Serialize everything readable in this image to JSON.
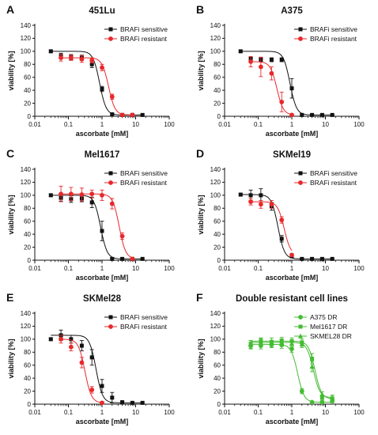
{
  "chart_data": [
    {
      "type": "scatter",
      "letter": "A",
      "title": "451Lu",
      "xlabel": "ascorbate [mM]",
      "ylabel": "viability [%]",
      "xscale": "log",
      "xlim": [
        0.01,
        100
      ],
      "ylim": [
        0,
        140
      ],
      "xticks": [
        "0.01",
        "0.1",
        "1",
        "10",
        "100"
      ],
      "yticks": [
        "0",
        "20",
        "40",
        "60",
        "80",
        "100",
        "120",
        "140"
      ],
      "grid": false,
      "legend_position": "top-right",
      "series": [
        {
          "name": "BRAFi sensitive",
          "color": "#111111",
          "marker": "square",
          "x": [
            0.03,
            0.06,
            0.12,
            0.25,
            0.5,
            1,
            2,
            4,
            8,
            16
          ],
          "y": [
            100,
            93,
            91,
            90,
            80,
            42,
            3,
            2,
            2,
            2
          ],
          "err": [
            2,
            4,
            4,
            4,
            5,
            4,
            1,
            1,
            1,
            1
          ]
        },
        {
          "name": "BRAFi resistant",
          "color": "#e8282b",
          "marker": "circle",
          "x": [
            0.06,
            0.12,
            0.25,
            0.5,
            1,
            2,
            4,
            8
          ],
          "y": [
            90,
            90,
            88,
            86,
            75,
            30,
            2,
            2
          ],
          "err": [
            5,
            4,
            5,
            4,
            5,
            4,
            1,
            1
          ]
        }
      ]
    },
    {
      "type": "scatter",
      "letter": "B",
      "title": "A375",
      "xlabel": "ascorbate [mM]",
      "ylabel": "viability [%]",
      "xscale": "log",
      "xlim": [
        0.01,
        100
      ],
      "ylim": [
        0,
        140
      ],
      "xticks": [
        "0.01",
        "0.1",
        "1",
        "10",
        "100"
      ],
      "yticks": [
        "0",
        "20",
        "40",
        "60",
        "80",
        "100",
        "120",
        "140"
      ],
      "grid": false,
      "legend_position": "top-right",
      "series": [
        {
          "name": "BRAFi sensitive",
          "color": "#111111",
          "marker": "square",
          "x": [
            0.03,
            0.06,
            0.12,
            0.25,
            0.5,
            1,
            2,
            4,
            8,
            16
          ],
          "y": [
            100,
            88,
            87,
            87,
            87,
            43,
            2,
            2,
            2,
            2
          ],
          "err": [
            2,
            3,
            3,
            3,
            3,
            15,
            1,
            1,
            1,
            1
          ]
        },
        {
          "name": "BRAFi resistant",
          "color": "#e8282b",
          "marker": "circle",
          "x": [
            0.06,
            0.12,
            0.25,
            0.5,
            1
          ],
          "y": [
            84,
            76,
            66,
            22,
            2
          ],
          "err": [
            8,
            15,
            10,
            15,
            1
          ]
        }
      ]
    },
    {
      "type": "scatter",
      "letter": "C",
      "title": "Mel1617",
      "xlabel": "ascorbate [mM]",
      "ylabel": "viability [%]",
      "xscale": "log",
      "xlim": [
        0.01,
        100
      ],
      "ylim": [
        0,
        140
      ],
      "xticks": [
        "0.01",
        "0.1",
        "1",
        "10",
        "100"
      ],
      "yticks": [
        "0",
        "20",
        "40",
        "60",
        "80",
        "100",
        "120",
        "140"
      ],
      "grid": false,
      "legend_position": "top-right",
      "series": [
        {
          "name": "BRAFi sensitive",
          "color": "#111111",
          "marker": "square",
          "x": [
            0.03,
            0.06,
            0.12,
            0.25,
            0.5,
            1,
            2,
            4,
            8,
            16
          ],
          "y": [
            100,
            96,
            94,
            95,
            89,
            45,
            2,
            2,
            2,
            2
          ],
          "err": [
            2,
            5,
            5,
            5,
            8,
            15,
            1,
            1,
            1,
            1
          ]
        },
        {
          "name": "BRAFi resistant",
          "color": "#e8282b",
          "marker": "circle",
          "x": [
            0.06,
            0.12,
            0.25,
            0.5,
            1,
            2,
            4,
            8
          ],
          "y": [
            102,
            102,
            101,
            102,
            100,
            87,
            37,
            2
          ],
          "err": [
            12,
            10,
            10,
            6,
            8,
            8,
            5,
            1
          ]
        }
      ]
    },
    {
      "type": "scatter",
      "letter": "D",
      "title": "SKMel19",
      "xlabel": "ascorbate [mM]",
      "ylabel": "viability [%]",
      "xscale": "log",
      "xlim": [
        0.01,
        100
      ],
      "ylim": [
        0,
        140
      ],
      "xticks": [
        "0.01",
        "0.1",
        "1",
        "10",
        "100"
      ],
      "yticks": [
        "0",
        "20",
        "40",
        "60",
        "80",
        "100",
        "120",
        "140"
      ],
      "grid": false,
      "legend_position": "top-right",
      "series": [
        {
          "name": "BRAFi sensitive",
          "color": "#111111",
          "marker": "square",
          "x": [
            0.03,
            0.06,
            0.12,
            0.25,
            0.5,
            1,
            2,
            4,
            8,
            16
          ],
          "y": [
            101,
            100,
            100,
            83,
            33,
            6,
            2,
            2,
            2,
            2
          ],
          "err": [
            2,
            8,
            10,
            6,
            5,
            2,
            1,
            1,
            1,
            1
          ]
        },
        {
          "name": "BRAFi resistant",
          "color": "#e8282b",
          "marker": "circle",
          "x": [
            0.06,
            0.12,
            0.25,
            0.5,
            1
          ],
          "y": [
            90,
            86,
            86,
            62,
            8
          ],
          "err": [
            5,
            6,
            6,
            5,
            2
          ]
        }
      ]
    },
    {
      "type": "scatter",
      "letter": "E",
      "title": "SKMel28",
      "xlabel": "ascorbate [mM]",
      "ylabel": "viability [%]",
      "xscale": "log",
      "xlim": [
        0.01,
        100
      ],
      "ylim": [
        0,
        140
      ],
      "xticks": [
        "0.01",
        "0.1",
        "1",
        "10",
        "100"
      ],
      "yticks": [
        "0",
        "20",
        "40",
        "60",
        "80",
        "100",
        "120",
        "140"
      ],
      "grid": false,
      "legend_position": "top-right",
      "series": [
        {
          "name": "BRAFi sensitive",
          "color": "#111111",
          "marker": "square",
          "x": [
            0.03,
            0.06,
            0.12,
            0.25,
            0.5,
            1,
            2,
            4,
            8,
            16
          ],
          "y": [
            100,
            106,
            100,
            90,
            72,
            28,
            10,
            3,
            2,
            2
          ],
          "err": [
            2,
            8,
            6,
            8,
            12,
            10,
            8,
            1,
            1,
            1
          ]
        },
        {
          "name": "BRAFi resistant",
          "color": "#e8282b",
          "marker": "circle",
          "x": [
            0.06,
            0.12,
            0.25,
            0.5,
            1
          ],
          "y": [
            100,
            88,
            64,
            22,
            2
          ],
          "err": [
            6,
            6,
            8,
            5,
            1
          ]
        }
      ]
    },
    {
      "type": "scatter",
      "letter": "F",
      "title": "Double resistant cell lines",
      "xlabel": "ascorbate [mM]",
      "ylabel": "viability [%]",
      "xscale": "log",
      "xlim": [
        0.01,
        100
      ],
      "ylim": [
        0,
        140
      ],
      "xticks": [
        "0.01",
        "0.1",
        "1",
        "10",
        "100"
      ],
      "yticks": [
        "0",
        "20",
        "40",
        "60",
        "80",
        "100",
        "120",
        "140"
      ],
      "grid": false,
      "legend_position": "top-right",
      "series": [
        {
          "name": "A375 DR",
          "color": "#44bb33",
          "marker": "circle",
          "x": [
            0.06,
            0.12,
            0.25,
            0.5,
            1,
            2,
            4,
            8,
            16
          ],
          "y": [
            90,
            90,
            92,
            91,
            85,
            20,
            3,
            3,
            5
          ],
          "err": [
            5,
            5,
            5,
            5,
            5,
            4,
            1,
            1,
            3
          ]
        },
        {
          "name": "Mel1617 DR",
          "color": "#44bb33",
          "marker": "square",
          "x": [
            0.06,
            0.12,
            0.25,
            0.5,
            1,
            2,
            4,
            8,
            16
          ],
          "y": [
            93,
            97,
            96,
            98,
            97,
            95,
            70,
            10,
            8
          ],
          "err": [
            5,
            5,
            6,
            5,
            5,
            5,
            8,
            4,
            4
          ]
        },
        {
          "name": "SKMEL28 DR",
          "color": "#44bb33",
          "marker": "triangle",
          "x": [
            0.06,
            0.12,
            0.25,
            0.5,
            1,
            2,
            4,
            8,
            16
          ],
          "y": [
            92,
            95,
            93,
            95,
            93,
            92,
            58,
            15,
            10
          ],
          "err": [
            6,
            6,
            5,
            5,
            5,
            5,
            8,
            4,
            4
          ]
        }
      ]
    }
  ]
}
